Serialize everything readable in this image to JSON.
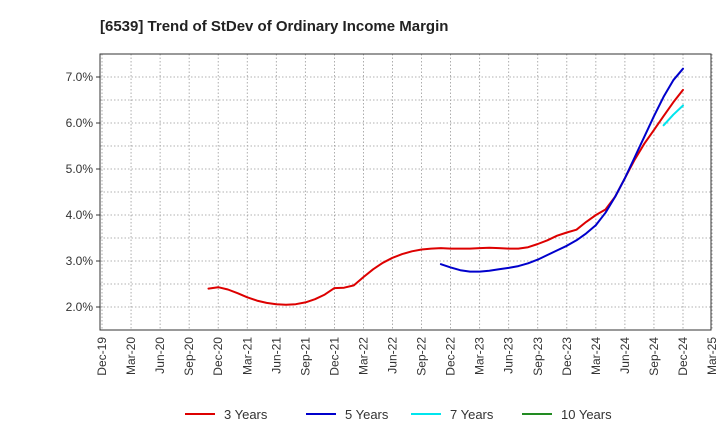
{
  "chart_data": {
    "type": "line",
    "title": "[6539]  Trend of StDev of Ordinary Income Margin",
    "xlabel": "",
    "ylabel": "",
    "x_ticks": [
      "Dec-19",
      "Mar-20",
      "Jun-20",
      "Sep-20",
      "Dec-20",
      "Mar-21",
      "Jun-21",
      "Sep-21",
      "Dec-21",
      "Mar-22",
      "Jun-22",
      "Sep-22",
      "Dec-22",
      "Mar-23",
      "Jun-23",
      "Sep-23",
      "Dec-23",
      "Mar-24",
      "Jun-24",
      "Sep-24",
      "Dec-24",
      "Mar-25"
    ],
    "y_ticks": [
      "2.0%",
      "3.0%",
      "4.0%",
      "5.0%",
      "6.0%",
      "7.0%"
    ],
    "ylim": [
      1.5,
      7.5
    ],
    "grid": true,
    "legend_position": "bottom",
    "series": [
      {
        "name": "3 Years",
        "color": "#dd0000",
        "points": [
          [
            "Nov-20",
            2.4
          ],
          [
            "Dec-20",
            2.43
          ],
          [
            "Jan-21",
            2.38
          ],
          [
            "Feb-21",
            2.3
          ],
          [
            "Mar-21",
            2.21
          ],
          [
            "Apr-21",
            2.14
          ],
          [
            "May-21",
            2.09
          ],
          [
            "Jun-21",
            2.06
          ],
          [
            "Jul-21",
            2.05
          ],
          [
            "Aug-21",
            2.06
          ],
          [
            "Sep-21",
            2.1
          ],
          [
            "Oct-21",
            2.17
          ],
          [
            "Nov-21",
            2.27
          ],
          [
            "Dec-21",
            2.41
          ],
          [
            "Jan-22",
            2.42
          ],
          [
            "Feb-22",
            2.47
          ],
          [
            "Mar-22",
            2.65
          ],
          [
            "Apr-22",
            2.82
          ],
          [
            "May-22",
            2.96
          ],
          [
            "Jun-22",
            3.07
          ],
          [
            "Jul-22",
            3.15
          ],
          [
            "Aug-22",
            3.21
          ],
          [
            "Sep-22",
            3.25
          ],
          [
            "Oct-22",
            3.27
          ],
          [
            "Nov-22",
            3.28
          ],
          [
            "Dec-22",
            3.27
          ],
          [
            "Jan-23",
            3.27
          ],
          [
            "Feb-23",
            3.27
          ],
          [
            "Mar-23",
            3.28
          ],
          [
            "Apr-23",
            3.29
          ],
          [
            "May-23",
            3.28
          ],
          [
            "Jun-23",
            3.27
          ],
          [
            "Jul-23",
            3.27
          ],
          [
            "Aug-23",
            3.3
          ],
          [
            "Sep-23",
            3.37
          ],
          [
            "Oct-23",
            3.45
          ],
          [
            "Nov-23",
            3.55
          ],
          [
            "Dec-23",
            3.62
          ],
          [
            "Jan-24",
            3.68
          ],
          [
            "Feb-24",
            3.85
          ],
          [
            "Mar-24",
            4.0
          ],
          [
            "Apr-24",
            4.12
          ],
          [
            "May-24",
            4.4
          ],
          [
            "Jun-24",
            4.8
          ],
          [
            "Jul-24",
            5.2
          ],
          [
            "Aug-24",
            5.55
          ],
          [
            "Sep-24",
            5.85
          ],
          [
            "Oct-24",
            6.15
          ],
          [
            "Nov-24",
            6.45
          ],
          [
            "Dec-24",
            6.72
          ]
        ]
      },
      {
        "name": "5 Years",
        "color": "#0000cc",
        "points": [
          [
            "Nov-22",
            2.93
          ],
          [
            "Dec-22",
            2.86
          ],
          [
            "Jan-23",
            2.8
          ],
          [
            "Feb-23",
            2.77
          ],
          [
            "Mar-23",
            2.77
          ],
          [
            "Apr-23",
            2.79
          ],
          [
            "May-23",
            2.82
          ],
          [
            "Jun-23",
            2.85
          ],
          [
            "Jul-23",
            2.89
          ],
          [
            "Aug-23",
            2.95
          ],
          [
            "Sep-23",
            3.03
          ],
          [
            "Oct-23",
            3.13
          ],
          [
            "Nov-23",
            3.23
          ],
          [
            "Dec-23",
            3.33
          ],
          [
            "Jan-24",
            3.45
          ],
          [
            "Feb-24",
            3.6
          ],
          [
            "Mar-24",
            3.78
          ],
          [
            "Apr-24",
            4.05
          ],
          [
            "May-24",
            4.4
          ],
          [
            "Jun-24",
            4.8
          ],
          [
            "Jul-24",
            5.25
          ],
          [
            "Aug-24",
            5.7
          ],
          [
            "Sep-24",
            6.15
          ],
          [
            "Oct-24",
            6.57
          ],
          [
            "Nov-24",
            6.93
          ],
          [
            "Dec-24",
            7.18
          ]
        ]
      },
      {
        "name": "7 Years",
        "color": "#00e5ee",
        "points": [
          [
            "Oct-24",
            5.95
          ],
          [
            "Nov-24",
            6.18
          ],
          [
            "Dec-24",
            6.38
          ]
        ]
      },
      {
        "name": "10 Years",
        "color": "#228b22",
        "points": []
      }
    ]
  }
}
